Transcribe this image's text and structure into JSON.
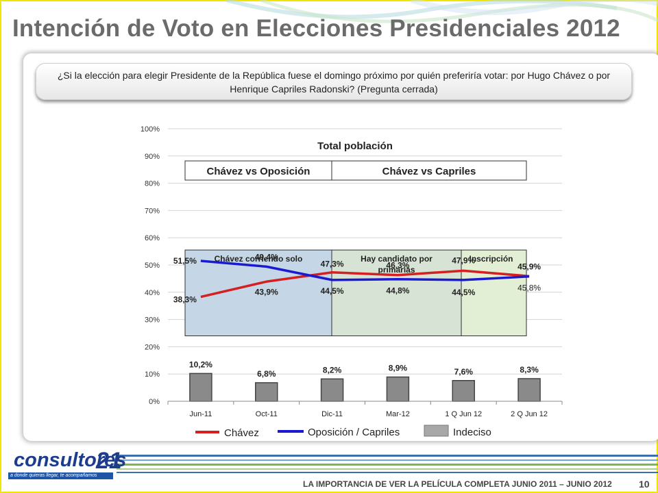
{
  "slide": {
    "title": "Intención de Voto en Elecciones Presidenciales 2012",
    "question_line1": "¿Si la elección para elegir Presidente de la República fuese el domingo próximo por quién preferiría votar: por Hugo Chávez o por",
    "question_line2": "Henrique Capriles Radonski? (Pregunta cerrada)"
  },
  "footer": {
    "logo_word": "consultores",
    "logo_number": "21",
    "logo_tagline": "a donde quieras llegar, te acompañamos",
    "caption": "LA IMPORTANCIA DE VER LA PELÍCULA COMPLETA JUNIO 2011 – JUNIO 2012",
    "page": "10"
  },
  "chart_data": {
    "type": "line",
    "title": "Total población",
    "categories": [
      "Jun-11",
      "Oct-11",
      "Dic-11",
      "Mar-12",
      "1 Q Jun 12",
      "2 Q Jun 12"
    ],
    "ylim": [
      0,
      100
    ],
    "yticks": [
      "0%",
      "10%",
      "20%",
      "30%",
      "40%",
      "50%",
      "60%",
      "70%",
      "80%",
      "90%",
      "100%"
    ],
    "grid": true,
    "series": [
      {
        "name": "Chávez",
        "color": "#d42020",
        "values": [
          38.3,
          43.9,
          47.3,
          46.3,
          47.9,
          45.9
        ],
        "labels": [
          "38,3%",
          "43,9%",
          "47,3%",
          "46,3%",
          "47,9%",
          "45,9%"
        ]
      },
      {
        "name": "Oposición / Capriles",
        "color": "#1a1ad0",
        "values": [
          51.5,
          49.4,
          44.5,
          44.8,
          44.5,
          45.8
        ],
        "labels": [
          "51,5%",
          "49,4%",
          "44,5%",
          "44,8%",
          "44,5%",
          "45,8%"
        ]
      }
    ],
    "bars": {
      "name": "Indeciso",
      "color": "#8a8a8a",
      "values": [
        10.2,
        6.8,
        8.2,
        8.9,
        7.6,
        8.3
      ],
      "labels": [
        "10,2%",
        "6,8%",
        "8,2%",
        "8,9%",
        "7,6%",
        "8,3%"
      ]
    },
    "headers": [
      "Chávez vs Oposición",
      "Chávez vs Capriles"
    ],
    "phases": [
      {
        "label": "Chávez corriendo solo",
        "color": "#c5d7e6",
        "from": 0,
        "to": 2
      },
      {
        "label": "Hay candidato por primarias",
        "color": "#d7e3d4",
        "from": 2,
        "to": 4
      },
      {
        "label": "Inscripción",
        "color": "#e2efd4",
        "from": 4,
        "to": 5
      }
    ],
    "legend": {
      "position": "bottom",
      "entries": [
        "Chávez",
        "Oposición / Capriles",
        "Indeciso"
      ]
    }
  }
}
